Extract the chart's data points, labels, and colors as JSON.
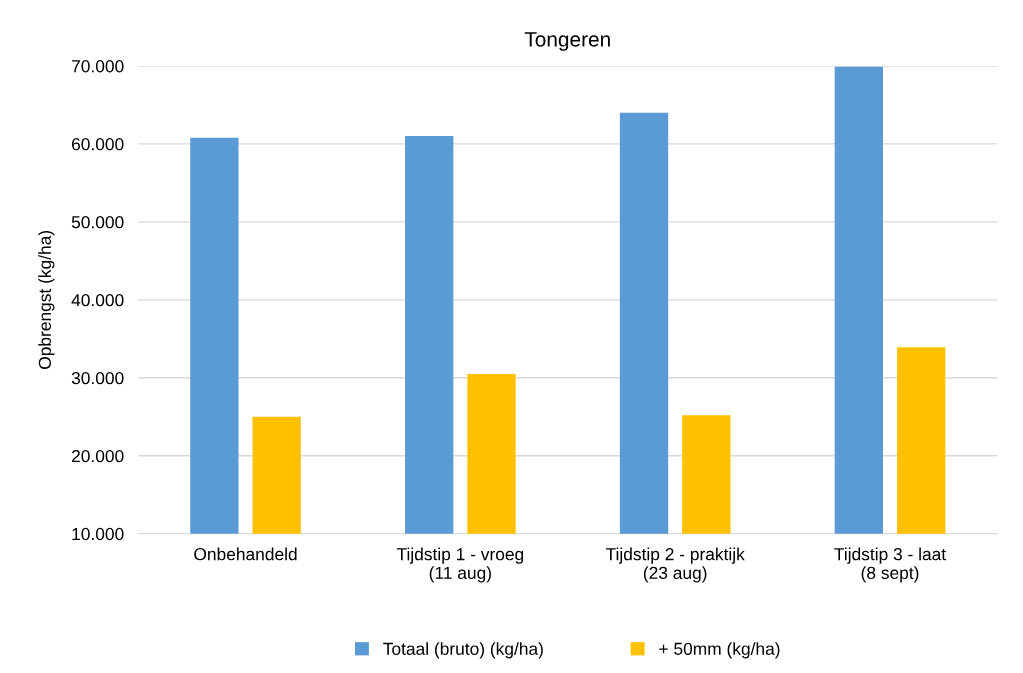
{
  "chart_data": {
    "type": "bar",
    "title": "Tongeren",
    "ylabel": "Opbrengst (kg/ha)",
    "categories": [
      "Onbehandeld",
      "Tijdstip 1 - vroeg\n(11 aug)",
      "Tijdstip 2 - praktijk\n(23 aug)",
      "Tijdstip 3 - laat\n(8 sept)"
    ],
    "series": [
      {
        "name": "Totaal (bruto) (kg/ha)",
        "color": "#5b9bd5",
        "values": [
          60800,
          61000,
          64000,
          69900
        ]
      },
      {
        "name": "+ 50mm (kg/ha)",
        "color": "#ffc000",
        "values": [
          25000,
          30500,
          25200,
          33900
        ]
      }
    ],
    "ylim": [
      10000,
      70000
    ],
    "yticks": [
      {
        "value": 10000,
        "label": "10.000"
      },
      {
        "value": 20000,
        "label": "20.000"
      },
      {
        "value": 30000,
        "label": "30.000"
      },
      {
        "value": 40000,
        "label": "40.000"
      },
      {
        "value": 50000,
        "label": "50.000"
      },
      {
        "value": 60000,
        "label": "60.000"
      },
      {
        "value": 70000,
        "label": "70.000"
      }
    ],
    "grid": "y",
    "legend": "bottom"
  }
}
